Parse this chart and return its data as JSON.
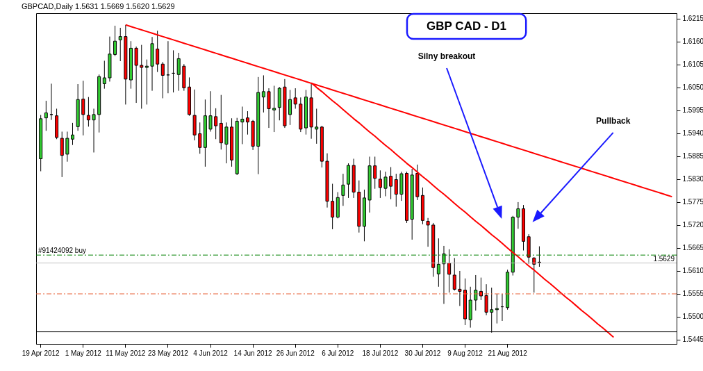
{
  "chart_data": {
    "type": "candlestick",
    "title": "GBPCAD,Daily  1.5631 1.5669 1.5620 1.5629",
    "categories": [
      "19 Apr 2012",
      null,
      null,
      null,
      null,
      null,
      null,
      null,
      "1 May 2012",
      null,
      null,
      null,
      null,
      null,
      null,
      null,
      "11 May 2012",
      null,
      null,
      null,
      null,
      null,
      null,
      null,
      "23 May 2012",
      null,
      null,
      null,
      null,
      null,
      null,
      null,
      "4 Jun 2012",
      null,
      null,
      null,
      null,
      null,
      null,
      null,
      "14 Jun 2012",
      null,
      null,
      null,
      null,
      null,
      null,
      null,
      "26 Jun 2012",
      null,
      null,
      null,
      null,
      null,
      null,
      null,
      "6 Jul 2012",
      null,
      null,
      null,
      null,
      null,
      null,
      null,
      "18 Jul 2012",
      null,
      null,
      null,
      null,
      null,
      null,
      null,
      "30 Jul 2012",
      null,
      null,
      null,
      null,
      null,
      null,
      null,
      "9 Aug 2012",
      null,
      null,
      null,
      null,
      null,
      null,
      null,
      "21 Aug 2012",
      null,
      null,
      null,
      null,
      null,
      null,
      null,
      null,
      null,
      null,
      null,
      null,
      null,
      null,
      null,
      null,
      null,
      null,
      null,
      null,
      null,
      null,
      null,
      null,
      null,
      null,
      null,
      null,
      null,
      null,
      null
    ],
    "ohlc": [
      [
        1.5879,
        1.5984,
        1.5849,
        1.5975
      ],
      [
        1.5977,
        1.6018,
        1.5946,
        1.5989
      ],
      [
        1.5985,
        1.6059,
        1.5972,
        1.5985
      ],
      [
        1.5982,
        1.5999,
        1.5926,
        1.593
      ],
      [
        1.5928,
        1.5944,
        1.5835,
        1.5887
      ],
      [
        1.589,
        1.5944,
        1.5872,
        1.5928
      ],
      [
        1.5926,
        1.5965,
        1.5912,
        1.5936
      ],
      [
        1.5956,
        1.6058,
        1.5946,
        1.6021
      ],
      [
        1.6022,
        1.6066,
        1.5935,
        1.5985
      ],
      [
        1.5983,
        1.6027,
        1.5956,
        1.5972
      ],
      [
        1.5972,
        1.5999,
        1.5894,
        1.5985
      ],
      [
        1.5985,
        1.6081,
        1.5942,
        1.6076
      ],
      [
        1.6059,
        1.6114,
        1.6047,
        1.6073
      ],
      [
        1.6073,
        1.6172,
        1.6064,
        1.613
      ],
      [
        1.6129,
        1.6198,
        1.6125,
        1.6161
      ],
      [
        1.6164,
        1.6193,
        1.6113,
        1.6172
      ],
      [
        1.6172,
        1.62,
        1.6009,
        1.607
      ],
      [
        1.6068,
        1.6161,
        1.6047,
        1.6144
      ],
      [
        1.6144,
        1.6148,
        1.6013,
        1.6103
      ],
      [
        1.6103,
        1.6152,
        1.5999,
        1.6098
      ],
      [
        1.6098,
        1.6117,
        1.6009,
        1.6101
      ],
      [
        1.6101,
        1.6171,
        1.6042,
        1.6155
      ],
      [
        1.6142,
        1.6186,
        1.6087,
        1.6106
      ],
      [
        1.6106,
        1.6111,
        1.6024,
        1.6079
      ],
      [
        1.608,
        1.6161,
        1.6036,
        1.608
      ],
      [
        1.6084,
        1.6139,
        1.6038,
        1.6084
      ],
      [
        1.6081,
        1.6133,
        1.6042,
        1.6119
      ],
      [
        1.6101,
        1.6106,
        1.6042,
        1.6049
      ],
      [
        1.6051,
        1.6074,
        1.5982,
        1.5985
      ],
      [
        1.5983,
        1.6045,
        1.5923,
        1.5936
      ],
      [
        1.5939,
        1.5966,
        1.5891,
        1.5906
      ],
      [
        1.5906,
        1.6021,
        1.586,
        1.5982
      ],
      [
        1.595,
        1.6041,
        1.5944,
        1.5982
      ],
      [
        1.598,
        1.6,
        1.5926,
        1.5958
      ],
      [
        1.5964,
        1.6032,
        1.5901,
        1.5917
      ],
      [
        1.5914,
        1.5966,
        1.5868,
        1.5955
      ],
      [
        1.5955,
        1.5976,
        1.586,
        1.5876
      ],
      [
        1.5843,
        1.5977,
        1.584,
        1.5969
      ],
      [
        1.5967,
        1.6004,
        1.5914,
        1.5974
      ],
      [
        1.5977,
        1.5993,
        1.5937,
        1.5967
      ],
      [
        1.5969,
        1.5972,
        1.59,
        1.5909
      ],
      [
        1.5909,
        1.6075,
        1.5842,
        1.6038
      ],
      [
        1.6027,
        1.6079,
        1.599,
        1.604
      ],
      [
        1.604,
        1.6048,
        1.5953,
        1.5999
      ],
      [
        1.5996,
        1.6054,
        1.5943,
        1.6
      ],
      [
        1.6002,
        1.6051,
        1.5971,
        1.6048
      ],
      [
        1.6051,
        1.607,
        1.5953,
        1.5958
      ],
      [
        1.5985,
        1.6044,
        1.596,
        1.6021
      ],
      [
        1.6025,
        1.6048,
        1.5999,
        1.601
      ],
      [
        1.601,
        1.6026,
        1.5943,
        1.595
      ],
      [
        1.5953,
        1.6044,
        1.5937,
        1.6027
      ],
      [
        1.6025,
        1.606,
        1.5927,
        1.5955
      ],
      [
        1.595,
        1.5999,
        1.5915,
        1.5955
      ],
      [
        1.5955,
        1.5958,
        1.5858,
        1.5873
      ],
      [
        1.5873,
        1.5892,
        1.5762,
        1.5777
      ],
      [
        1.5777,
        1.5819,
        1.571,
        1.5739
      ],
      [
        1.5739,
        1.5799,
        1.5736,
        1.5786
      ],
      [
        1.5791,
        1.5843,
        1.5766,
        1.5816
      ],
      [
        1.5818,
        1.5868,
        1.5785,
        1.5863
      ],
      [
        1.5863,
        1.5879,
        1.5785,
        1.5799
      ],
      [
        1.5799,
        1.5827,
        1.5702,
        1.5717
      ],
      [
        1.5717,
        1.5805,
        1.5681,
        1.5785
      ],
      [
        1.578,
        1.5884,
        1.575,
        1.5862
      ],
      [
        1.5862,
        1.5884,
        1.5807,
        1.5832
      ],
      [
        1.583,
        1.5851,
        1.5785,
        1.581
      ],
      [
        1.5808,
        1.5848,
        1.5789,
        1.5835
      ],
      [
        1.5837,
        1.5859,
        1.5782,
        1.5813
      ],
      [
        1.5829,
        1.5843,
        1.5764,
        1.5794
      ],
      [
        1.5794,
        1.5848,
        1.5778,
        1.5843
      ],
      [
        1.5844,
        1.5848,
        1.5725,
        1.5731
      ],
      [
        1.5734,
        1.5855,
        1.5685,
        1.584
      ],
      [
        1.5844,
        1.5865,
        1.578,
        1.5788
      ],
      [
        1.5791,
        1.581,
        1.5722,
        1.5731
      ],
      [
        1.5729,
        1.5737,
        1.5668,
        1.572
      ],
      [
        1.572,
        1.5725,
        1.5596,
        1.5618
      ],
      [
        1.5603,
        1.5688,
        1.5572,
        1.5626
      ],
      [
        1.5627,
        1.567,
        1.5531,
        1.5651
      ],
      [
        1.5629,
        1.5662,
        1.5558,
        1.5602
      ],
      [
        1.56,
        1.5641,
        1.5563,
        1.5566
      ],
      [
        1.5566,
        1.561,
        1.5526,
        1.5561
      ],
      [
        1.5564,
        1.5592,
        1.548,
        1.5495
      ],
      [
        1.5493,
        1.5572,
        1.5474,
        1.554
      ],
      [
        1.554,
        1.56,
        1.5515,
        1.5564
      ],
      [
        1.5561,
        1.5594,
        1.554,
        1.555
      ],
      [
        1.5551,
        1.5578,
        1.5504,
        1.5511
      ],
      [
        1.5511,
        1.557,
        1.5462,
        1.5517
      ],
      [
        1.5517,
        1.5555,
        1.5484,
        1.552
      ],
      [
        1.5524,
        1.5555,
        1.549,
        1.5524
      ],
      [
        1.5522,
        1.5613,
        1.5517,
        1.5607
      ],
      [
        1.5607,
        1.5742,
        1.5599,
        1.5739
      ],
      [
        1.5739,
        1.5775,
        1.5711,
        1.5759
      ],
      [
        1.5759,
        1.5768,
        1.5659,
        1.5681
      ],
      [
        1.5692,
        1.5698,
        1.5627,
        1.5643
      ],
      [
        1.5641,
        1.5643,
        1.5558,
        1.5626
      ],
      [
        1.5631,
        1.5669,
        1.562,
        1.5629
      ],
      null,
      null,
      null,
      null,
      null,
      null,
      null,
      null,
      null,
      null,
      null,
      null,
      null,
      null,
      null,
      null,
      null,
      null,
      null,
      null,
      null,
      null,
      null,
      null,
      null
    ],
    "series": [
      {
        "type": "line",
        "color": "#ff0000",
        "values": [
          null,
          null,
          null,
          null,
          null,
          null,
          null,
          null,
          null,
          null,
          null,
          null,
          null,
          null,
          null,
          null,
          1.62,
          1.6196,
          1.6192,
          1.6188,
          1.6184,
          1.618,
          1.6176,
          1.6172,
          1.6168,
          1.6164,
          1.616,
          1.6156,
          1.6152,
          1.6148,
          1.6144,
          1.614,
          1.6136,
          1.6132,
          1.6128,
          1.6124,
          1.612,
          1.6116,
          1.6112,
          1.6108,
          1.6104,
          1.61,
          1.6096,
          1.6092,
          1.6088,
          1.6084,
          1.608,
          1.6076,
          1.6072,
          1.6068,
          1.6064,
          1.606,
          1.6056,
          1.6052,
          1.6048,
          1.6044,
          1.604,
          1.6036,
          1.6032,
          1.6028,
          1.6024,
          1.602,
          1.6016,
          1.6012,
          1.6008,
          1.6004,
          1.6,
          1.5996,
          1.5992,
          1.5988,
          1.5984,
          1.598,
          1.5976,
          1.5972,
          1.5968,
          1.5964,
          1.596,
          1.5956,
          1.5952,
          1.5948,
          1.5944,
          1.594,
          1.5936,
          1.5932,
          1.5928,
          1.5924,
          1.592,
          1.5916,
          1.5912,
          1.5908,
          1.5904,
          1.59,
          1.5896,
          1.5892,
          1.5888,
          1.5884,
          1.588,
          1.5876,
          1.5872,
          1.5868,
          1.5864,
          1.586,
          1.5856,
          1.5852,
          1.5848,
          1.5844,
          1.584,
          1.5836,
          1.5832,
          1.5828,
          1.5824,
          1.582,
          1.5816,
          1.5812,
          1.5808,
          1.5804,
          1.58,
          1.5796,
          1.5792,
          1.5788
        ]
      },
      {
        "type": "line",
        "color": "#ff0000",
        "values": [
          null,
          null,
          null,
          null,
          null,
          null,
          null,
          null,
          null,
          null,
          null,
          null,
          null,
          null,
          null,
          null,
          null,
          null,
          null,
          null,
          null,
          null,
          null,
          null,
          null,
          null,
          null,
          null,
          null,
          null,
          null,
          null,
          null,
          null,
          null,
          null,
          null,
          null,
          null,
          null,
          null,
          null,
          null,
          null,
          null,
          null,
          null,
          null,
          null,
          null,
          null,
          1.6061,
          1.605,
          1.604,
          1.6029,
          1.6018,
          1.6008,
          1.5997,
          1.5986,
          1.5975,
          1.5965,
          1.5954,
          1.5943,
          1.5933,
          1.5922,
          1.5911,
          1.5901,
          1.589,
          1.5879,
          1.5868,
          1.5858,
          1.5847,
          1.5836,
          1.5826,
          1.5815,
          1.5804,
          1.5794,
          1.5783,
          1.5772,
          1.5761,
          1.5751,
          1.574,
          1.5729,
          1.5719,
          1.5708,
          1.5697,
          1.5687,
          1.5676,
          1.5665,
          1.5654,
          1.5644,
          1.5633,
          1.5622,
          1.5612,
          1.5601,
          1.559,
          1.558,
          1.5569,
          1.5558,
          1.5547,
          1.5537,
          1.5526,
          1.5515,
          1.5505,
          1.5494,
          1.5483,
          1.5473,
          1.5462,
          1.5451,
          null,
          null,
          null,
          null,
          null,
          null,
          null,
          null,
          null,
          null,
          null
        ]
      }
    ],
    "ylim": [
      1.5435,
      1.6228
    ],
    "yticks": [
      1.5445,
      {
        "value": 1.55,
        "label": "1.5500"
      },
      1.5555,
      {
        "value": 1.561,
        "label": "1.5610"
      },
      1.5665,
      {
        "value": 1.572,
        "label": "1.5720"
      },
      1.5775,
      {
        "value": 1.583,
        "label": "1.5830"
      },
      1.5885,
      {
        "value": 1.594,
        "label": "1.5940"
      },
      1.5995,
      {
        "value": 1.605,
        "label": "1.6050"
      },
      1.6105,
      {
        "value": 1.616,
        "label": "1.6160"
      },
      1.6215
    ],
    "ref_lines": [
      {
        "axis": "y",
        "value": 1.5648,
        "label": "#91424092 buy",
        "color": "#008000",
        "line_style": "dashed"
      },
      {
        "axis": "y",
        "value": 1.5629,
        "label": "1.5629",
        "color": "#c0c0c0",
        "line_style": "solid"
      },
      {
        "axis": "y",
        "value": 1.5555,
        "color": "#e8643c",
        "line_style": "dashed"
      },
      {
        "axis": "y",
        "value": 1.5464,
        "color": "#000000",
        "line_style": "solid"
      }
    ],
    "annotations": [
      "GBP CAD - D1",
      "Silny breakout",
      "Pullback"
    ]
  }
}
